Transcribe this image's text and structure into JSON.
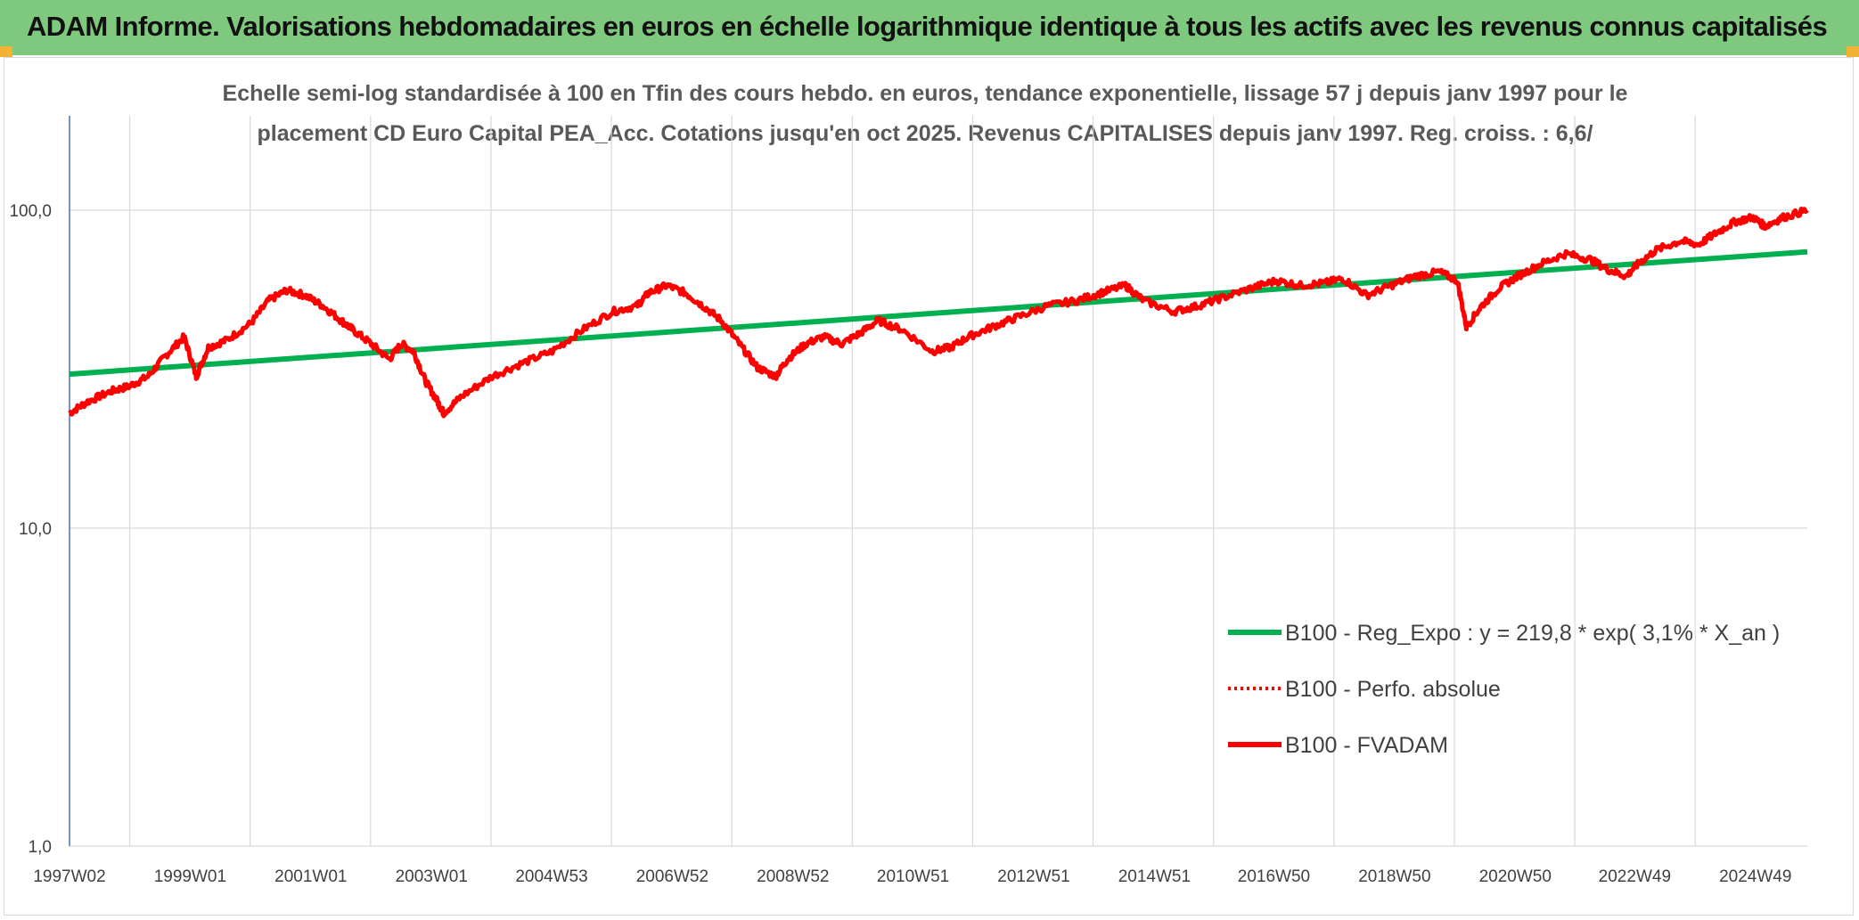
{
  "header": {
    "title": "ADAM Informe. Valorisations hebdomadaires en euros en échelle logarithmique identique à tous les actifs avec les revenus connus capitalisés"
  },
  "colors": {
    "header_bg": "#7fc97f",
    "trend": "#00b050",
    "price": "#ff0000",
    "grid": "#d9d9d9",
    "axis": "#4472c4"
  },
  "chart_data": {
    "type": "line",
    "title": "Echelle semi-log standardisée à 100 en Tfin des cours hebdo. en euros, tendance exponentielle, lissage 57 j depuis janv 1997 pour le placement CD Euro Capital PEA_Acc. Cotations jusqu'en oct 2025. Revenus CAPITALISES depuis janv 1997. Reg. croiss. : 6,6/",
    "subtitle_lines": [
      "Echelle semi-log standardisée à 100 en Tfin des cours hebdo. en euros, tendance exponentielle, lissage 57 j depuis janv 1997 pour le",
      "placement CD Euro Capital PEA_Acc. Cotations jusqu'en oct 2025. Revenus CAPITALISES depuis janv 1997. Reg. croiss. : 6,6/"
    ],
    "y_scale": "log",
    "ylim": [
      1,
      200
    ],
    "y_ticks": [
      {
        "value": 1,
        "label": "1,0"
      },
      {
        "value": 10,
        "label": "10,0"
      },
      {
        "value": 100,
        "label": "100,0"
      }
    ],
    "x_range": [
      1997.0,
      2025.8
    ],
    "x_ticks": [
      {
        "x": 1997.0,
        "label": "1997W02"
      },
      {
        "x": 1999.0,
        "label": "1999W01"
      },
      {
        "x": 2001.0,
        "label": "2001W01"
      },
      {
        "x": 2003.0,
        "label": "2003W01"
      },
      {
        "x": 2004.99,
        "label": "2004W53"
      },
      {
        "x": 2006.99,
        "label": "2006W52"
      },
      {
        "x": 2008.99,
        "label": "2008W52"
      },
      {
        "x": 2010.98,
        "label": "2010W51"
      },
      {
        "x": 2012.98,
        "label": "2012W51"
      },
      {
        "x": 2014.98,
        "label": "2014W51"
      },
      {
        "x": 2016.96,
        "label": "2016W50"
      },
      {
        "x": 2018.96,
        "label": "2018W50"
      },
      {
        "x": 2020.96,
        "label": "2020W50"
      },
      {
        "x": 2022.94,
        "label": "2022W49"
      },
      {
        "x": 2024.94,
        "label": "2024W49"
      }
    ],
    "grid": true,
    "legend_position": "bottom-right",
    "legend": [
      {
        "label": "B100 - Reg_Expo : y = 219,8 * exp( 3,1% *  X_an )",
        "color": "#00b050",
        "style": "solid"
      },
      {
        "label": "B100 - Perfo. absolue",
        "color": "#ff0000",
        "style": "dotted"
      },
      {
        "label": "B100 - FVADAM",
        "color": "#ff0000",
        "style": "solid"
      }
    ],
    "series": [
      {
        "name": "B100 - Reg_Expo : y = 219,8 * exp( 3,1% *  X_an )",
        "color": "#00b050",
        "x": [
          1997.0,
          2025.8
        ],
        "y": [
          30.5,
          74.0
        ]
      },
      {
        "name": "B100 - FVADAM",
        "color": "#ff0000",
        "x": [
          1997.0,
          1997.3,
          1997.7,
          1998.0,
          1998.3,
          1998.6,
          1998.9,
          1999.1,
          1999.3,
          1999.6,
          2000.0,
          2000.3,
          2000.6,
          2000.9,
          2001.2,
          2001.5,
          2001.7,
          2002.0,
          2002.3,
          2002.5,
          2002.7,
          2002.9,
          2003.1,
          2003.2,
          2003.5,
          2004.0,
          2004.5,
          2005.0,
          2005.5,
          2006.0,
          2006.4,
          2006.6,
          2006.9,
          2007.2,
          2007.5,
          2007.8,
          2008.1,
          2008.4,
          2008.7,
          2008.9,
          2009.2,
          2009.5,
          2009.8,
          2010.1,
          2010.4,
          2010.8,
          2011.3,
          2011.6,
          2011.9,
          2012.3,
          2012.7,
          2013.2,
          2013.7,
          2014.1,
          2014.5,
          2014.8,
          2015.3,
          2015.7,
          2016.1,
          2016.6,
          2017.0,
          2017.4,
          2017.8,
          2018.1,
          2018.5,
          2018.9,
          2019.3,
          2019.7,
          2020.0,
          2020.15,
          2020.4,
          2020.7,
          2021.0,
          2021.4,
          2021.8,
          2022.2,
          2022.5,
          2022.8,
          2023.0,
          2023.3,
          2023.7,
          2024.0,
          2024.3,
          2024.6,
          2024.9,
          2025.1,
          2025.4,
          2025.8
        ],
        "y": [
          23,
          25,
          27,
          28,
          30,
          35,
          40,
          30,
          37,
          39,
          44,
          52,
          56,
          54,
          50,
          45,
          42,
          38,
          34,
          38,
          36,
          29,
          25,
          23,
          26,
          30,
          33,
          36,
          42,
          48,
          50,
          55,
          58,
          55,
          50,
          45,
          38,
          32,
          30,
          34,
          38,
          40,
          38,
          41,
          45,
          42,
          36,
          37,
          40,
          43,
          46,
          50,
          52,
          55,
          58,
          52,
          48,
          50,
          53,
          57,
          60,
          58,
          59,
          61,
          54,
          58,
          62,
          64,
          60,
          43,
          50,
          57,
          62,
          68,
          73,
          70,
          65,
          62,
          68,
          75,
          80,
          78,
          85,
          92,
          95,
          89,
          95,
          100
        ]
      }
    ]
  }
}
